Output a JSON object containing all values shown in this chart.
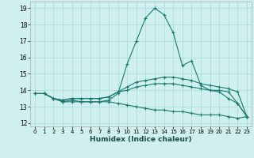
{
  "xlabel": "Humidex (Indice chaleur)",
  "xlim": [
    -0.5,
    23.5
  ],
  "ylim": [
    11.8,
    19.4
  ],
  "yticks": [
    12,
    13,
    14,
    15,
    16,
    17,
    18,
    19
  ],
  "xticks": [
    0,
    1,
    2,
    3,
    4,
    5,
    6,
    7,
    8,
    9,
    10,
    11,
    12,
    13,
    14,
    15,
    16,
    17,
    18,
    19,
    20,
    21,
    22,
    23
  ],
  "bg_color": "#cff0ee",
  "grid_color": "#aaddda",
  "line_color": "#1a7a6e",
  "line1_x": [
    0,
    1,
    2,
    3,
    4,
    5,
    6,
    7,
    8,
    9,
    10,
    11,
    12,
    13,
    14,
    15,
    16,
    17,
    18,
    19,
    20,
    21,
    22,
    23
  ],
  "line1_y": [
    13.8,
    13.8,
    13.5,
    13.3,
    13.4,
    13.3,
    13.3,
    13.3,
    13.4,
    13.8,
    15.6,
    17.0,
    18.4,
    19.0,
    18.6,
    17.5,
    15.5,
    15.8,
    14.3,
    14.0,
    13.9,
    13.5,
    13.2,
    12.4
  ],
  "line2_x": [
    0,
    1,
    2,
    3,
    4,
    5,
    6,
    7,
    8,
    9,
    10,
    11,
    12,
    13,
    14,
    15,
    16,
    17,
    18,
    19,
    20,
    21,
    22,
    23
  ],
  "line2_y": [
    13.8,
    13.8,
    13.5,
    13.4,
    13.5,
    13.5,
    13.5,
    13.5,
    13.6,
    13.9,
    14.2,
    14.5,
    14.6,
    14.7,
    14.8,
    14.8,
    14.7,
    14.6,
    14.4,
    14.3,
    14.2,
    14.1,
    13.9,
    12.4
  ],
  "line3_x": [
    0,
    1,
    2,
    3,
    4,
    5,
    6,
    7,
    8,
    9,
    10,
    11,
    12,
    13,
    14,
    15,
    16,
    17,
    18,
    19,
    20,
    21,
    22,
    23
  ],
  "line3_y": [
    13.8,
    13.8,
    13.5,
    13.4,
    13.5,
    13.5,
    13.5,
    13.5,
    13.6,
    13.9,
    14.0,
    14.2,
    14.3,
    14.4,
    14.4,
    14.4,
    14.3,
    14.2,
    14.1,
    14.0,
    14.0,
    13.9,
    13.2,
    12.4
  ],
  "line4_x": [
    0,
    1,
    2,
    3,
    4,
    5,
    6,
    7,
    8,
    9,
    10,
    11,
    12,
    13,
    14,
    15,
    16,
    17,
    18,
    19,
    20,
    21,
    22,
    23
  ],
  "line4_y": [
    13.8,
    13.8,
    13.5,
    13.3,
    13.3,
    13.3,
    13.3,
    13.3,
    13.3,
    13.2,
    13.1,
    13.0,
    12.9,
    12.8,
    12.8,
    12.7,
    12.7,
    12.6,
    12.5,
    12.5,
    12.5,
    12.4,
    12.3,
    12.4
  ]
}
